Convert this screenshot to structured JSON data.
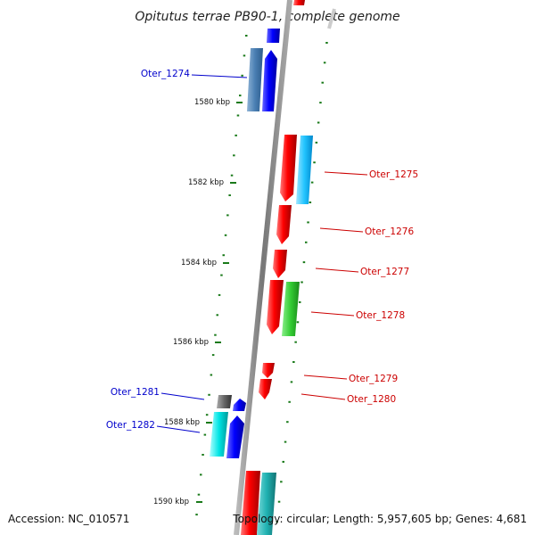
{
  "title": "Opitutus terrae PB90-1, complete genome",
  "footer": {
    "accession": "Accession: NC_010571",
    "topology": "Topology: circular; Length: 5,957,605 bp; Genes: 4,681"
  },
  "scale": {
    "tick_labels": [
      "1580 kbp",
      "1582 kbp",
      "1584 kbp",
      "1586 kbp",
      "1588 kbp",
      "1590 kbp"
    ]
  },
  "genes": [
    {
      "name": "Oter_1274",
      "strand": "forward",
      "color": "#0000cc"
    },
    {
      "name": "Oter_1275",
      "strand": "reverse",
      "color": "#cc0000"
    },
    {
      "name": "Oter_1276",
      "strand": "reverse",
      "color": "#cc0000"
    },
    {
      "name": "Oter_1277",
      "strand": "reverse",
      "color": "#cc0000"
    },
    {
      "name": "Oter_1278",
      "strand": "reverse",
      "color": "#cc0000"
    },
    {
      "name": "Oter_1279",
      "strand": "reverse",
      "color": "#cc0000"
    },
    {
      "name": "Oter_1280",
      "strand": "reverse",
      "color": "#cc0000"
    },
    {
      "name": "Oter_1281",
      "strand": "forward",
      "color": "#0000cc"
    },
    {
      "name": "Oter_1282",
      "strand": "forward",
      "color": "#0000cc"
    }
  ],
  "colors": {
    "forward_gene": "#0000ff",
    "reverse_gene": "#ff0000",
    "forward_label": "#0000cc",
    "reverse_label": "#cc0000",
    "backbone": "#888888",
    "tick": "#1a7a1a"
  }
}
